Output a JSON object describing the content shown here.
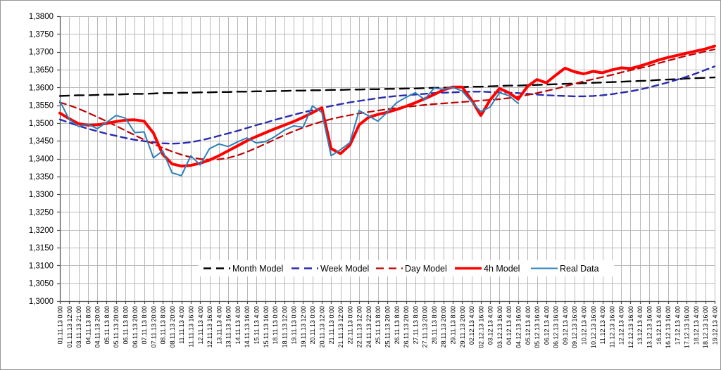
{
  "chart_data": {
    "type": "line",
    "title": "",
    "grid": "both",
    "legend_position": "inside-bottom-center",
    "y_axis": {
      "min": 1.3,
      "max": 1.38,
      "step": 0.005,
      "tick_labels": [
        "1,3800",
        "1,3750",
        "1,3700",
        "1,3650",
        "1,3600",
        "1,3550",
        "1,3500",
        "1,3450",
        "1,3400",
        "1,3350",
        "1,3300",
        "1,3250",
        "1,3200",
        "1,3150",
        "1,3100",
        "1,3050",
        "1,3000"
      ]
    },
    "x_axis": {
      "tick_labels": [
        "01.11.13 0:00",
        "01.11.13 12:00",
        "03.11.13 21:00",
        "04.11.13 8:00",
        "04.11.13 20:00",
        "05.11.13 8:00",
        "05.11.13 20:00",
        "06.11.13 8:00",
        "06.11.13 20:00",
        "07.11.13 8:00",
        "07.11.13 20:00",
        "08.11.13 8:00",
        "08.11.13 20:00",
        "11.11.13 4:00",
        "11.11.13 16:00",
        "12.11.13 4:00",
        "12.11.13 16:00",
        "13.11.13 4:00",
        "13.11.13 16:00",
        "14.11.13 4:00",
        "14.11.13 16:00",
        "15.11.13 4:00",
        "15.11.13 16:00",
        "18.11.13 0:00",
        "18.11.13 12:00",
        "19.11.13 0:00",
        "19.11.13 12:00",
        "20.11.13 0:00",
        "20.11.13 12:00",
        "21.11.13 0:00",
        "21.11.13 12:00",
        "22.11.13 0:00",
        "22.11.13 12:00",
        "24.11.13 22:00",
        "25.11.13 8:00",
        "25.11.13 20:00",
        "26.11.13 8:00",
        "26.11.13 20:00",
        "27.11.13 8:00",
        "27.11.13 20:00",
        "28.11.13 8:00",
        "28.11.13 20:00",
        "29.11.13 8:00",
        "29.11.13 20:00",
        "02.12.13 4:00",
        "02.12.13 16:00",
        "03.12.13 4:00",
        "03.12.13 16:00",
        "04.12.13 4:00",
        "04.12.13 16:00",
        "05.12.13 4:00",
        "05.12.13 16:00",
        "06.12.13 4:00",
        "06.12.13 16:00",
        "09.12.13 4:00",
        "09.12.13 16:00",
        "10.12.13 4:00",
        "10.12.13 16:00",
        "11.12.13 4:00",
        "11.12.13 16:00",
        "12.12.13 4:00",
        "12.12.13 16:00",
        "13.12.13 4:00",
        "13.12.13 16:00",
        "16.12.13 4:00",
        "16.12.13 16:00",
        "17.12.13 4:00",
        "17.12.13 16:00",
        "18.12.13 4:00",
        "18.12.13 16:00",
        "19.12.13 4:00"
      ]
    },
    "colors": {
      "gridline": "#b9b9b9",
      "axis": "#4d4d4d",
      "month": "#000000",
      "week": "#2a2ab0",
      "day": "#c00000",
      "h4": "#ff0000",
      "real": "#2e80b9"
    },
    "series": [
      {
        "name": "Month Model",
        "color": "#000000",
        "dash": "13 8",
        "width": 2.4,
        "values": [
          1.3576,
          1.3577,
          1.3578,
          1.3578,
          1.3579,
          1.358,
          1.358,
          1.3581,
          1.3582,
          1.3582,
          1.3583,
          1.3584,
          1.3584,
          1.3585,
          1.3585,
          1.3586,
          1.3586,
          1.3587,
          1.3587,
          1.3588,
          1.3588,
          1.3589,
          1.3589,
          1.359,
          1.359,
          1.3591,
          1.3591,
          1.3592,
          1.3592,
          1.3593,
          1.3593,
          1.3594,
          1.3594,
          1.3595,
          1.3595,
          1.3596,
          1.3596,
          1.3597,
          1.3597,
          1.3598,
          1.3599,
          1.3599,
          1.36,
          1.3601,
          1.3602,
          1.3602,
          1.3603,
          1.3604,
          1.3605,
          1.3605,
          1.3606,
          1.3607,
          1.3608,
          1.3609,
          1.361,
          1.3611,
          1.3612,
          1.3613,
          1.3614,
          1.3615,
          1.3616,
          1.3617,
          1.3618,
          1.3619,
          1.3621,
          1.3622,
          1.3623,
          1.3625,
          1.3626,
          1.3627,
          1.3628
        ]
      },
      {
        "name": "Week Model",
        "color": "#2a2ab0",
        "dash": "9 6",
        "width": 2.4,
        "values": [
          1.351,
          1.3501,
          1.3492,
          1.3484,
          1.3477,
          1.347,
          1.3464,
          1.3458,
          1.3453,
          1.3449,
          1.3446,
          1.3443,
          1.3442,
          1.3443,
          1.3446,
          1.3451,
          1.3457,
          1.3464,
          1.3471,
          1.3478,
          1.3486,
          1.3494,
          1.3501,
          1.3509,
          1.3516,
          1.3523,
          1.353,
          1.3536,
          1.3542,
          1.3548,
          1.3553,
          1.3558,
          1.3562,
          1.3566,
          1.357,
          1.3573,
          1.3576,
          1.3578,
          1.358,
          1.3582,
          1.3584,
          1.3585,
          1.3586,
          1.3587,
          1.3588,
          1.3588,
          1.3587,
          1.3586,
          1.3585,
          1.3584,
          1.3582,
          1.358,
          1.3578,
          1.3577,
          1.3576,
          1.3575,
          1.3575,
          1.3576,
          1.3578,
          1.3581,
          1.3585,
          1.3589,
          1.3594,
          1.36,
          1.3607,
          1.3614,
          1.3622,
          1.363,
          1.3639,
          1.3649,
          1.3659
        ]
      },
      {
        "name": "Day Model",
        "color": "#c00000",
        "dash": "9 6",
        "width": 2.2,
        "values": [
          1.3558,
          1.355,
          1.354,
          1.3529,
          1.3517,
          1.3505,
          1.3492,
          1.3479,
          1.3466,
          1.3453,
          1.3441,
          1.343,
          1.342,
          1.3411,
          1.3404,
          1.3399,
          1.3397,
          1.3398,
          1.3402,
          1.3409,
          1.3419,
          1.343,
          1.3442,
          1.3454,
          1.3466,
          1.3477,
          1.3487,
          1.3496,
          1.3504,
          1.3511,
          1.3517,
          1.3522,
          1.3527,
          1.3531,
          1.3535,
          1.3539,
          1.3542,
          1.3545,
          1.3548,
          1.3551,
          1.3553,
          1.3555,
          1.3557,
          1.3559,
          1.3561,
          1.3563,
          1.3565,
          1.3567,
          1.357,
          1.3574,
          1.3579,
          1.3584,
          1.359,
          1.3596,
          1.3603,
          1.361,
          1.3617,
          1.3623,
          1.3629,
          1.3635,
          1.3642,
          1.3648,
          1.3654,
          1.366,
          1.3668,
          1.3675,
          1.3682,
          1.3689,
          1.3695,
          1.3701,
          1.3707
        ]
      },
      {
        "name": "4h Model",
        "color": "#ff0000",
        "dash": null,
        "width": 4,
        "values": [
          1.3528,
          1.3512,
          1.3498,
          1.3494,
          1.3495,
          1.3499,
          1.3504,
          1.3508,
          1.3509,
          1.3505,
          1.3472,
          1.3412,
          1.3385,
          1.3379,
          1.3381,
          1.3387,
          1.3396,
          1.3408,
          1.3422,
          1.3436,
          1.345,
          1.3462,
          1.3473,
          1.3484,
          1.3494,
          1.3504,
          1.3516,
          1.3529,
          1.3543,
          1.3428,
          1.3414,
          1.3438,
          1.3495,
          1.3516,
          1.3524,
          1.353,
          1.3538,
          1.3547,
          1.3557,
          1.3568,
          1.358,
          1.3593,
          1.3601,
          1.3601,
          1.3565,
          1.3521,
          1.3565,
          1.3597,
          1.3585,
          1.3567,
          1.3603,
          1.3622,
          1.3613,
          1.3634,
          1.3654,
          1.3644,
          1.3638,
          1.3645,
          1.3641,
          1.3649,
          1.3655,
          1.3653,
          1.366,
          1.3668,
          1.3677,
          1.3684,
          1.369,
          1.3696,
          1.3702,
          1.3708,
          1.3716
        ]
      },
      {
        "name": "Real Data",
        "color": "#2e80b9",
        "dash": null,
        "width": 2,
        "values": [
          1.3562,
          1.351,
          1.349,
          1.3497,
          1.3484,
          1.3502,
          1.3521,
          1.3514,
          1.3473,
          1.3475,
          1.3402,
          1.3422,
          1.336,
          1.3352,
          1.3408,
          1.3382,
          1.3428,
          1.3441,
          1.3434,
          1.3447,
          1.3458,
          1.3444,
          1.3448,
          1.3462,
          1.348,
          1.3492,
          1.3488,
          1.3548,
          1.353,
          1.3408,
          1.3425,
          1.3445,
          1.3535,
          1.352,
          1.3505,
          1.353,
          1.3557,
          1.3572,
          1.3585,
          1.3566,
          1.3598,
          1.3595,
          1.36,
          1.359,
          1.356,
          1.3532,
          1.3545,
          1.3585,
          1.3577,
          1.3555,
          null,
          null,
          null,
          null,
          null,
          null,
          null,
          null,
          null,
          null,
          null,
          null,
          null,
          null,
          null,
          null,
          null,
          null,
          null,
          null,
          null
        ]
      }
    ]
  }
}
